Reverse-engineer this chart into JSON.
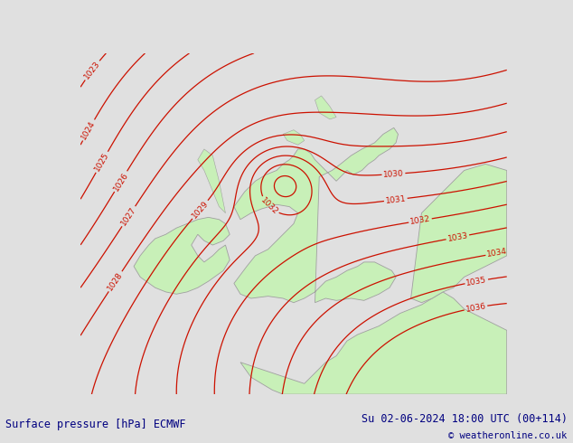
{
  "title_left": "Surface pressure [hPa] ECMWF",
  "title_right": "Su 02-06-2024 18:00 UTC (00+114)",
  "copyright": "© weatheronline.co.uk",
  "bg_color": "#e0e0e0",
  "land_color": "#c8f0b8",
  "land_edge_color": "#a0a0a0",
  "contour_color": "#cc1100",
  "title_color": "#000080",
  "copyright_color": "#000080",
  "figsize": [
    6.34,
    4.9
  ],
  "dpi": 100,
  "lon_min": -13,
  "lon_max": 7,
  "lat_min": 47,
  "lat_max": 63
}
